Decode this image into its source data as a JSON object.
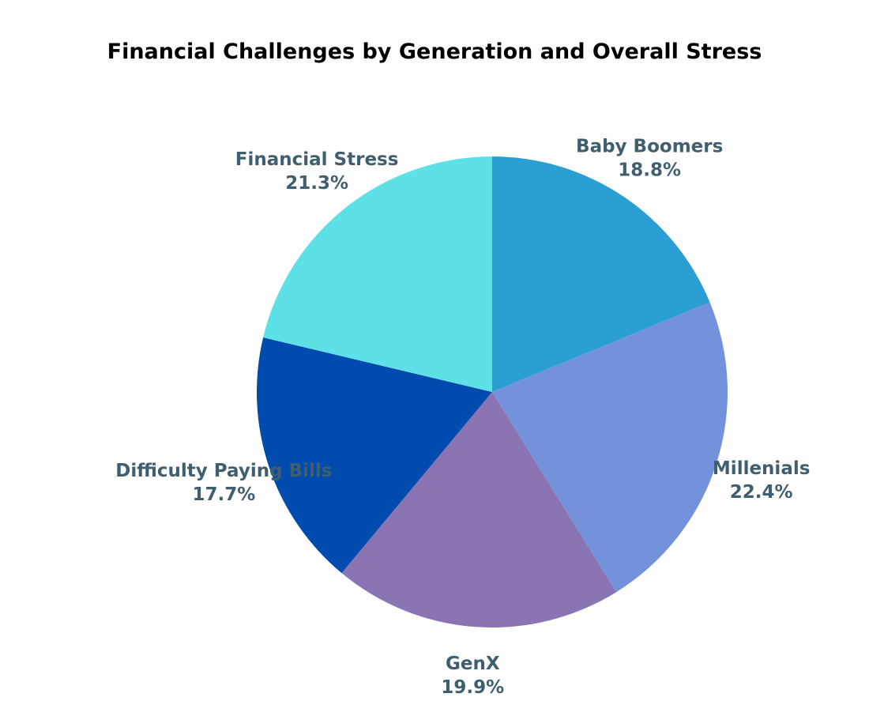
{
  "chart_data": {
    "type": "pie",
    "title": "Financial Challenges by Generation and Overall Stress",
    "categories": [
      "Baby Boomers",
      "Millenials",
      "GenX",
      "Difficulty Paying Bills",
      "Financial Stress"
    ],
    "values": [
      18.8,
      22.4,
      19.9,
      17.7,
      21.3
    ],
    "value_labels": [
      "18.8%",
      "22.4%",
      "19.9%",
      "17.7%",
      "21.3%"
    ],
    "colors": [
      "#2b9fd3",
      "#7392db",
      "#8a74b3",
      "#004bad",
      "#5ee1e6"
    ],
    "start_angle": "12 o'clock",
    "direction": "clockwise",
    "legend": "none"
  }
}
